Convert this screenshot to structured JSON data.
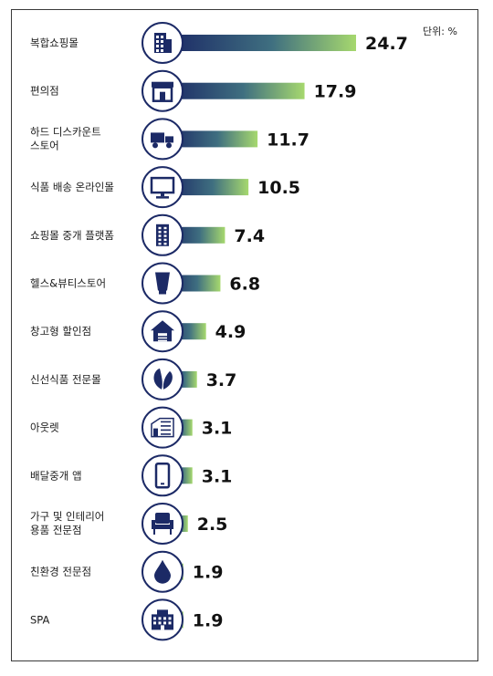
{
  "unit_label": "단위: %",
  "chart_data": {
    "type": "bar",
    "orientation": "horizontal",
    "title": "",
    "xlabel": "",
    "ylabel": "",
    "unit": "%",
    "grid": false,
    "legend": "none",
    "gradient": {
      "start": "#1c2a66",
      "end": "#a6d86e"
    },
    "icon_color": "#1c2a66",
    "categories": [
      "복합쇼핑몰",
      "편의점",
      "하드 디스카운트\n스토어",
      "식품 배송 온라인몰",
      "쇼핑몰 중개 플랫폼",
      "헬스&뷰티스토어",
      "창고형 할인점",
      "신선식품 전문몰",
      "아웃렛",
      "배달중개 앱",
      "가구 및 인테리어\n용품 전문점",
      "친환경 전문점",
      "SPA"
    ],
    "icons": [
      "building-icon",
      "storefront-icon",
      "truck-icon",
      "monitor-icon",
      "tall-building-icon",
      "cosmetic-tube-icon",
      "warehouse-icon",
      "leaf-icon",
      "outlet-building-icon",
      "smartphone-icon",
      "armchair-icon",
      "water-drop-icon",
      "shop-building-icon"
    ],
    "values": [
      24.7,
      17.9,
      11.7,
      10.5,
      7.4,
      6.8,
      4.9,
      3.7,
      3.1,
      3.1,
      2.5,
      1.9,
      1.9
    ],
    "value_labels": [
      "24.7",
      "17.9",
      "11.7",
      "10.5",
      "7.4",
      "6.8",
      "4.9",
      "3.7",
      "3.1",
      "3.1",
      "2.5",
      "1.9",
      "1.9"
    ],
    "xlim": [
      0,
      24.7
    ]
  }
}
